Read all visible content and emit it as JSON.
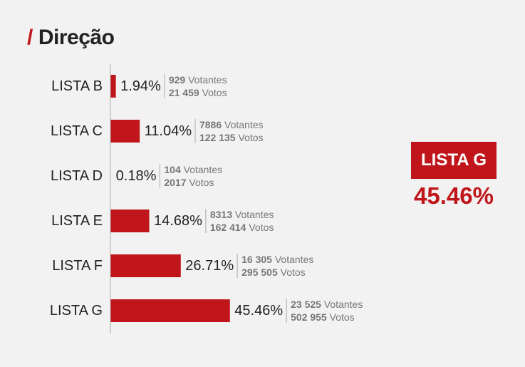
{
  "header": {
    "slash": "/",
    "title": "Direção"
  },
  "winner": {
    "label": "LISTA G",
    "pct": "45.46%"
  },
  "colors": {
    "bar": "#c0161b",
    "axis": "#aaaaaa",
    "text": "#222222",
    "detail": "#777777"
  },
  "chart_data": {
    "type": "bar",
    "orientation": "horizontal",
    "categories": [
      "LISTA B",
      "LISTA C",
      "LISTA D",
      "LISTA E",
      "LISTA F",
      "LISTA G"
    ],
    "values": [
      1.94,
      11.04,
      0.18,
      14.68,
      26.71,
      45.46
    ],
    "value_labels": [
      "1.94%",
      "11.04%",
      "0.18%",
      "14.68%",
      "26.71%",
      "45.46%"
    ],
    "votantes": [
      "929",
      "7886",
      "104",
      "8313",
      "16 305",
      "23 525"
    ],
    "votos": [
      "21 459",
      "122 135",
      "2017",
      "162 414",
      "295 505",
      "502 955"
    ],
    "votantes_suffix": "Votantes",
    "votos_suffix": "Votos",
    "title": "",
    "xlabel": "",
    "ylabel": "",
    "grid": false
  }
}
